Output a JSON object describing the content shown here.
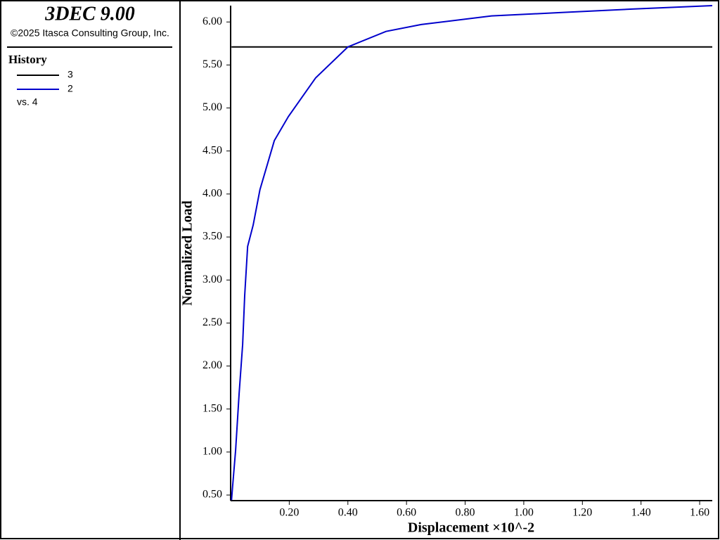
{
  "chart_data": {
    "type": "line",
    "title": "3DEC 9.00",
    "subtitle": "©2025 Itasca Consulting Group, Inc.",
    "legend_title": "History",
    "legend_note": "vs. 4",
    "x_label": "Displacement ×10^-2",
    "y_label": "Normalized Load",
    "x": [
      0.003,
      0.007,
      0.017,
      0.029,
      0.041,
      0.048,
      0.058,
      0.077,
      0.1,
      0.149,
      0.197,
      0.29,
      0.4,
      0.53,
      0.65,
      0.89,
      1.13,
      1.37,
      1.643
    ],
    "series": [
      {
        "name": "3",
        "color": "#000000",
        "values": [
          5.71,
          5.71,
          5.71,
          5.71,
          5.71,
          5.71,
          5.71,
          5.71,
          5.71,
          5.71,
          5.71,
          5.71,
          5.71,
          5.71,
          5.71,
          5.71,
          5.71,
          5.71,
          5.71
        ]
      },
      {
        "name": "2",
        "color": "#0000cc",
        "values": [
          0.44,
          0.61,
          1.02,
          1.68,
          2.25,
          2.82,
          3.39,
          3.64,
          4.05,
          4.62,
          4.9,
          5.35,
          5.71,
          5.89,
          5.97,
          6.07,
          6.11,
          6.15,
          6.19
        ]
      }
    ],
    "xlim": [
      0,
      1.643
    ],
    "ylim": [
      0.435,
      6.19
    ],
    "xticks": [
      {
        "value": 0.2,
        "label": "0.20"
      },
      {
        "value": 0.4,
        "label": "0.40"
      },
      {
        "value": 0.6,
        "label": "0.60"
      },
      {
        "value": 0.8,
        "label": "0.80"
      },
      {
        "value": 1.0,
        "label": "1.00"
      },
      {
        "value": 1.2,
        "label": "1.20"
      },
      {
        "value": 1.4,
        "label": "1.40"
      },
      {
        "value": 1.6,
        "label": "1.60"
      }
    ],
    "yticks": [
      {
        "value": 0.5,
        "label": "0.50"
      },
      {
        "value": 1.0,
        "label": "1.00"
      },
      {
        "value": 1.5,
        "label": "1.50"
      },
      {
        "value": 2.0,
        "label": "2.00"
      },
      {
        "value": 2.5,
        "label": "2.50"
      },
      {
        "value": 3.0,
        "label": "3.00"
      },
      {
        "value": 3.5,
        "label": "3.50"
      },
      {
        "value": 4.0,
        "label": "4.00"
      },
      {
        "value": 4.5,
        "label": "4.50"
      },
      {
        "value": 5.0,
        "label": "5.00"
      },
      {
        "value": 5.5,
        "label": "5.50"
      },
      {
        "value": 6.0,
        "label": "6.00"
      }
    ]
  }
}
